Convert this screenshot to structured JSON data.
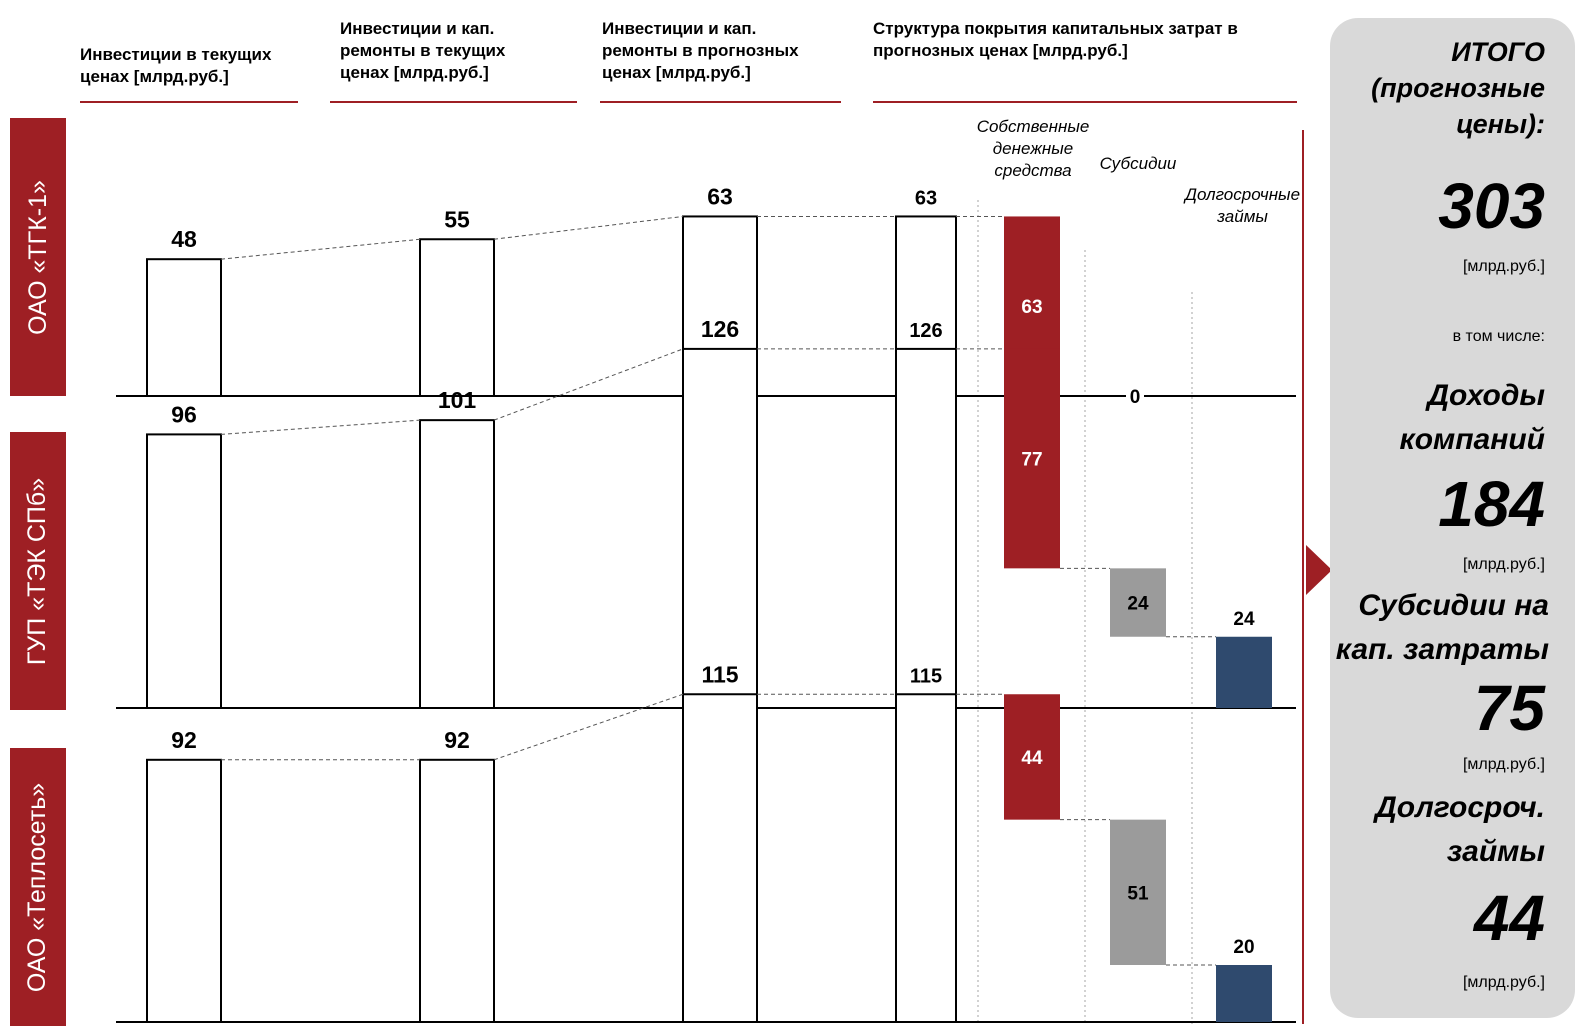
{
  "columns": {
    "current_inv": [
      "Инвестиции в текущих",
      "ценах [млрд.руб.]"
    ],
    "current_inv_rep": [
      "Инвестиции и кап.",
      "ремонты в текущих",
      "ценах [млрд.руб.]"
    ],
    "forecast_inv_rep": [
      "Инвестиции и кап.",
      "ремонты в прогнозных",
      "ценах [млрд.руб.]"
    ],
    "structure": [
      "Структура покрытия капитальных затрат в",
      "прогнозных ценах [млрд.руб.]"
    ]
  },
  "annotations": {
    "own_funds": [
      "Собственные",
      "денежные",
      "средства"
    ],
    "subsidies": "Субсидии",
    "long_loans": [
      "Долгосрочные",
      "займы"
    ]
  },
  "chart_data": {
    "type": "bar",
    "categories": [
      "ОАО «ТГК-1»",
      "ГУП «ТЭК СПб»",
      "ОАО «Теплосеть»"
    ],
    "current_inv": [
      48,
      96,
      92
    ],
    "current_inv_rep": [
      55,
      101,
      92
    ],
    "forecast_inv_rep": [
      63,
      126,
      115
    ],
    "structure_total": [
      63,
      126,
      115
    ],
    "own_funds": [
      63,
      77,
      44
    ],
    "subsidies": [
      0,
      24,
      51
    ],
    "long_loans": [
      0,
      24,
      20
    ],
    "zero_label": "0",
    "colors": {
      "own_funds": "#9e1f24",
      "subsidies": "#9b9b9b",
      "long_loans": "#2f4a6e",
      "row_label": "#9e1f24",
      "summary_bg": "#d9d9d9"
    }
  },
  "summary": {
    "title": [
      "ИТОГО",
      "(прогнозные",
      "цены):"
    ],
    "total": "303",
    "unit": "[млрд.руб.]",
    "incl": "в том числе:",
    "income_label": [
      "Доходы",
      "компаний"
    ],
    "income": "184",
    "subs_label": [
      "Субсидии на",
      "кап. затраты"
    ],
    "subs": "75",
    "loans_label": [
      "Долгосроч.",
      "займы"
    ],
    "loans": "44"
  }
}
